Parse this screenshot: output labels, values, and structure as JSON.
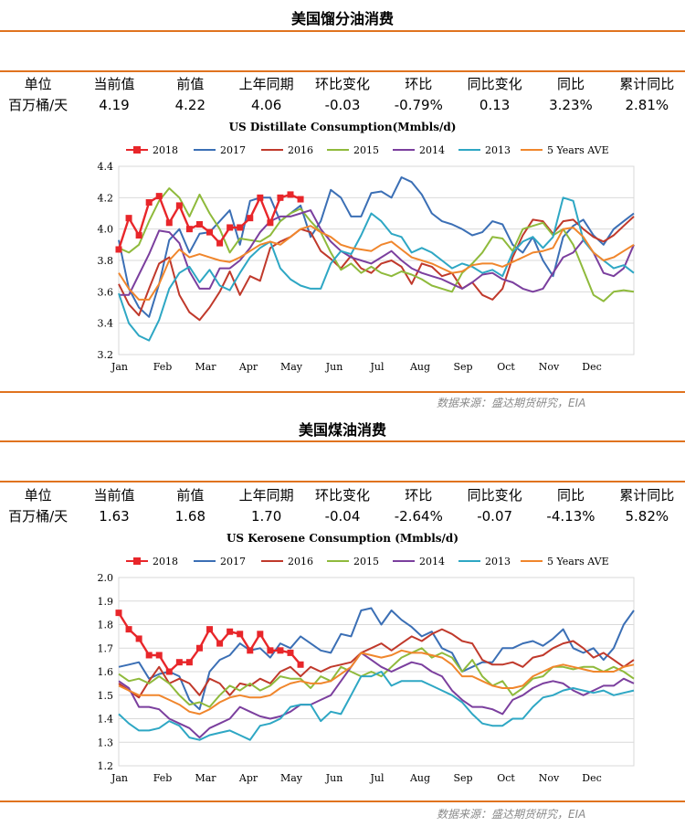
{
  "sections": [
    {
      "title": "美国馏分油消费",
      "table": {
        "headers": [
          "单位",
          "当前值",
          "前值",
          "上年同期",
          "环比变化",
          "环比",
          "同比变化",
          "同比",
          "累计同比"
        ],
        "values": [
          "百万桶/天",
          "4.19",
          "4.22",
          "4.06",
          "-0.03",
          "-0.79%",
          "0.13",
          "3.23%",
          "2.81%"
        ]
      },
      "source": "数据来源：盛达期货研究，EIA"
    },
    {
      "title": "美国煤油消费",
      "table": {
        "headers": [
          "单位",
          "当前值",
          "前值",
          "上年同期",
          "环比变化",
          "环比",
          "同比变化",
          "同比",
          "累计同比"
        ],
        "values": [
          "百万桶/天",
          "1.63",
          "1.68",
          "1.70",
          "-0.04",
          "-2.64%",
          "-0.07",
          "-4.13%",
          "5.82%"
        ]
      },
      "source": "数据来源：盛达期货研究，EIA"
    }
  ],
  "chart_data": [
    {
      "type": "line",
      "title": "US Distillate Consumption(Mmbls/d)",
      "xlabel": "",
      "ylabel": "",
      "x_tick_labels": [
        "Jan",
        "Feb",
        "Mar",
        "Apr",
        "May",
        "Jun",
        "Jul",
        "Aug",
        "Sep",
        "Oct",
        "Nov",
        "Dec"
      ],
      "ylim": [
        3.2,
        4.4
      ],
      "y_ticks": [
        "3.2",
        "3.4",
        "3.6",
        "3.8",
        "4.0",
        "4.2",
        "4.4"
      ],
      "x_unit": "week",
      "xlim": [
        1,
        52
      ],
      "grid": "horizontal",
      "legend": "top",
      "series": [
        {
          "name": "2018",
          "color": "#e8262a",
          "marker": "square",
          "values": [
            3.87,
            4.07,
            3.96,
            4.17,
            4.21,
            4.04,
            4.15,
            4.0,
            4.03,
            3.98,
            3.91,
            4.01,
            4.01,
            4.07,
            4.2,
            4.04,
            4.2,
            4.22,
            4.19
          ]
        },
        {
          "name": "2017",
          "color": "#3b6fb5",
          "values": [
            3.93,
            3.62,
            3.5,
            3.44,
            3.65,
            3.93,
            4.0,
            3.85,
            3.97,
            3.98,
            4.05,
            4.12,
            3.9,
            4.18,
            4.2,
            4.2,
            4.05,
            4.1,
            4.15,
            3.95,
            4.05,
            4.25,
            4.2,
            4.08,
            4.08,
            4.23,
            4.24,
            4.2,
            4.33,
            4.3,
            4.22,
            4.1,
            4.05,
            4.03,
            4.0,
            3.96,
            3.98,
            4.05,
            4.03,
            3.9,
            3.85,
            3.95,
            3.8,
            3.7,
            3.95,
            4.02,
            4.06,
            3.96,
            3.9,
            4.0,
            4.05,
            4.1
          ]
        },
        {
          "name": "2016",
          "color": "#c0392b",
          "values": [
            3.65,
            3.52,
            3.45,
            3.62,
            3.78,
            3.82,
            3.58,
            3.47,
            3.42,
            3.5,
            3.6,
            3.73,
            3.58,
            3.7,
            3.67,
            3.88,
            3.92,
            3.95,
            4.0,
            3.98,
            3.86,
            3.81,
            3.75,
            3.83,
            3.75,
            3.72,
            3.78,
            3.8,
            3.76,
            3.65,
            3.78,
            3.76,
            3.7,
            3.72,
            3.62,
            3.66,
            3.58,
            3.55,
            3.62,
            3.82,
            3.96,
            4.06,
            4.05,
            3.97,
            4.05,
            4.06,
            4.0,
            3.95,
            3.92,
            3.96,
            4.02,
            4.08
          ]
        },
        {
          "name": "2015",
          "color": "#8fba3c",
          "values": [
            3.88,
            3.85,
            3.9,
            4.05,
            4.18,
            4.26,
            4.2,
            4.08,
            4.22,
            4.1,
            4.0,
            3.85,
            3.94,
            3.93,
            3.92,
            3.96,
            4.05,
            4.1,
            4.13,
            4.05,
            3.98,
            3.85,
            3.74,
            3.78,
            3.72,
            3.76,
            3.72,
            3.7,
            3.73,
            3.71,
            3.68,
            3.64,
            3.62,
            3.6,
            3.72,
            3.78,
            3.85,
            3.95,
            3.94,
            3.86,
            4.0,
            4.02,
            4.04,
            3.96,
            4.0,
            3.9,
            3.74,
            3.58,
            3.54,
            3.6,
            3.61,
            3.6
          ]
        },
        {
          "name": "2014",
          "color": "#7b3f9e",
          "values": [
            3.58,
            3.58,
            3.71,
            3.84,
            3.99,
            3.98,
            3.91,
            3.73,
            3.62,
            3.62,
            3.75,
            3.75,
            3.8,
            3.88,
            3.98,
            4.05,
            4.08,
            4.08,
            4.1,
            4.12,
            4.0,
            3.92,
            3.86,
            3.82,
            3.8,
            3.78,
            3.82,
            3.86,
            3.8,
            3.75,
            3.72,
            3.7,
            3.68,
            3.65,
            3.62,
            3.66,
            3.71,
            3.72,
            3.68,
            3.66,
            3.62,
            3.6,
            3.62,
            3.72,
            3.82,
            3.85,
            3.93,
            3.85,
            3.72,
            3.7,
            3.75,
            3.9
          ]
        },
        {
          "name": "2013",
          "color": "#2ea7c4",
          "values": [
            3.59,
            3.4,
            3.32,
            3.29,
            3.42,
            3.62,
            3.72,
            3.76,
            3.66,
            3.74,
            3.64,
            3.61,
            3.72,
            3.82,
            3.88,
            3.92,
            3.75,
            3.68,
            3.64,
            3.62,
            3.62,
            3.78,
            3.86,
            3.84,
            3.96,
            4.1,
            4.05,
            3.97,
            3.95,
            3.85,
            3.88,
            3.85,
            3.8,
            3.75,
            3.78,
            3.76,
            3.72,
            3.74,
            3.7,
            3.85,
            3.92,
            3.95,
            3.88,
            3.95,
            4.2,
            4.18,
            3.93,
            3.85,
            3.8,
            3.75,
            3.77,
            3.72
          ]
        },
        {
          "name": "5 Years AVE",
          "color": "#f0862c",
          "values": [
            3.72,
            3.62,
            3.55,
            3.55,
            3.65,
            3.8,
            3.87,
            3.82,
            3.84,
            3.82,
            3.8,
            3.79,
            3.82,
            3.86,
            3.9,
            3.92,
            3.9,
            3.95,
            4.0,
            4.02,
            3.98,
            3.95,
            3.9,
            3.88,
            3.87,
            3.86,
            3.9,
            3.92,
            3.87,
            3.82,
            3.8,
            3.78,
            3.75,
            3.72,
            3.73,
            3.77,
            3.78,
            3.78,
            3.76,
            3.79,
            3.82,
            3.85,
            3.86,
            3.88,
            4.0,
            4.01,
            3.95,
            3.85,
            3.8,
            3.82,
            3.86,
            3.9
          ]
        }
      ]
    },
    {
      "type": "line",
      "title": "US Kerosene Consumption (Mmbls/d)",
      "xlabel": "",
      "ylabel": "",
      "x_tick_labels": [
        "Jan",
        "Feb",
        "Mar",
        "Apr",
        "May",
        "Jun",
        "Jul",
        "Aug",
        "Sep",
        "Oct",
        "Nov",
        "Dec"
      ],
      "ylim": [
        1.2,
        2.0
      ],
      "y_ticks": [
        "1.2",
        "1.3",
        "1.4",
        "1.5",
        "1.6",
        "1.7",
        "1.8",
        "1.9",
        "2.0"
      ],
      "x_unit": "week",
      "xlim": [
        1,
        52
      ],
      "grid": "horizontal",
      "legend": "top",
      "series": [
        {
          "name": "2018",
          "color": "#e8262a",
          "marker": "square",
          "values": [
            1.85,
            1.78,
            1.74,
            1.67,
            1.67,
            1.6,
            1.64,
            1.64,
            1.7,
            1.78,
            1.72,
            1.77,
            1.76,
            1.69,
            1.76,
            1.69,
            1.69,
            1.68,
            1.63
          ]
        },
        {
          "name": "2017",
          "color": "#3b6fb5",
          "values": [
            1.62,
            1.63,
            1.64,
            1.57,
            1.59,
            1.6,
            1.58,
            1.48,
            1.44,
            1.6,
            1.65,
            1.67,
            1.72,
            1.69,
            1.7,
            1.66,
            1.72,
            1.7,
            1.75,
            1.72,
            1.69,
            1.68,
            1.76,
            1.75,
            1.86,
            1.87,
            1.8,
            1.86,
            1.82,
            1.79,
            1.75,
            1.77,
            1.7,
            1.68,
            1.6,
            1.62,
            1.64,
            1.64,
            1.7,
            1.7,
            1.72,
            1.73,
            1.71,
            1.74,
            1.78,
            1.7,
            1.68,
            1.7,
            1.65,
            1.7,
            1.8,
            1.86
          ]
        },
        {
          "name": "2016",
          "color": "#c0392b",
          "values": [
            1.55,
            1.52,
            1.49,
            1.56,
            1.62,
            1.55,
            1.57,
            1.55,
            1.5,
            1.57,
            1.55,
            1.5,
            1.55,
            1.54,
            1.57,
            1.55,
            1.6,
            1.62,
            1.58,
            1.62,
            1.6,
            1.62,
            1.63,
            1.64,
            1.68,
            1.7,
            1.72,
            1.69,
            1.72,
            1.75,
            1.73,
            1.76,
            1.78,
            1.76,
            1.73,
            1.72,
            1.65,
            1.63,
            1.63,
            1.64,
            1.62,
            1.66,
            1.67,
            1.7,
            1.72,
            1.73,
            1.7,
            1.66,
            1.68,
            1.65,
            1.62,
            1.65
          ]
        },
        {
          "name": "2015",
          "color": "#8fba3c",
          "values": [
            1.59,
            1.56,
            1.57,
            1.55,
            1.58,
            1.55,
            1.5,
            1.46,
            1.47,
            1.45,
            1.5,
            1.54,
            1.52,
            1.55,
            1.52,
            1.54,
            1.58,
            1.57,
            1.57,
            1.53,
            1.58,
            1.56,
            1.62,
            1.6,
            1.58,
            1.6,
            1.58,
            1.62,
            1.66,
            1.68,
            1.7,
            1.66,
            1.68,
            1.66,
            1.6,
            1.65,
            1.58,
            1.54,
            1.56,
            1.5,
            1.53,
            1.57,
            1.58,
            1.62,
            1.62,
            1.61,
            1.62,
            1.62,
            1.6,
            1.62,
            1.6,
            1.57
          ]
        },
        {
          "name": "2014",
          "color": "#7b3f9e",
          "values": [
            1.56,
            1.53,
            1.45,
            1.45,
            1.44,
            1.4,
            1.38,
            1.36,
            1.32,
            1.36,
            1.38,
            1.4,
            1.45,
            1.43,
            1.41,
            1.4,
            1.41,
            1.43,
            1.46,
            1.46,
            1.48,
            1.5,
            1.56,
            1.62,
            1.68,
            1.65,
            1.62,
            1.6,
            1.62,
            1.64,
            1.63,
            1.6,
            1.58,
            1.52,
            1.48,
            1.45,
            1.45,
            1.44,
            1.42,
            1.48,
            1.5,
            1.53,
            1.55,
            1.56,
            1.55,
            1.52,
            1.5,
            1.52,
            1.54,
            1.54,
            1.57,
            1.55
          ]
        },
        {
          "name": "2013",
          "color": "#2ea7c4",
          "values": [
            1.42,
            1.38,
            1.35,
            1.35,
            1.36,
            1.39,
            1.37,
            1.32,
            1.31,
            1.33,
            1.34,
            1.35,
            1.33,
            1.31,
            1.37,
            1.38,
            1.4,
            1.45,
            1.46,
            1.46,
            1.39,
            1.43,
            1.42,
            1.5,
            1.58,
            1.58,
            1.6,
            1.54,
            1.56,
            1.56,
            1.56,
            1.54,
            1.52,
            1.5,
            1.47,
            1.42,
            1.38,
            1.37,
            1.37,
            1.4,
            1.4,
            1.45,
            1.49,
            1.5,
            1.52,
            1.53,
            1.52,
            1.51,
            1.52,
            1.5,
            1.51,
            1.52
          ]
        },
        {
          "name": "5 Years AVE",
          "color": "#f0862c",
          "values": [
            1.54,
            1.52,
            1.5,
            1.5,
            1.5,
            1.48,
            1.46,
            1.43,
            1.42,
            1.44,
            1.47,
            1.49,
            1.5,
            1.49,
            1.49,
            1.5,
            1.53,
            1.55,
            1.56,
            1.55,
            1.55,
            1.56,
            1.59,
            1.62,
            1.68,
            1.67,
            1.66,
            1.67,
            1.69,
            1.68,
            1.68,
            1.67,
            1.66,
            1.63,
            1.58,
            1.58,
            1.56,
            1.54,
            1.53,
            1.53,
            1.54,
            1.58,
            1.6,
            1.62,
            1.63,
            1.62,
            1.61,
            1.6,
            1.6,
            1.6,
            1.62,
            1.63
          ]
        }
      ]
    }
  ]
}
